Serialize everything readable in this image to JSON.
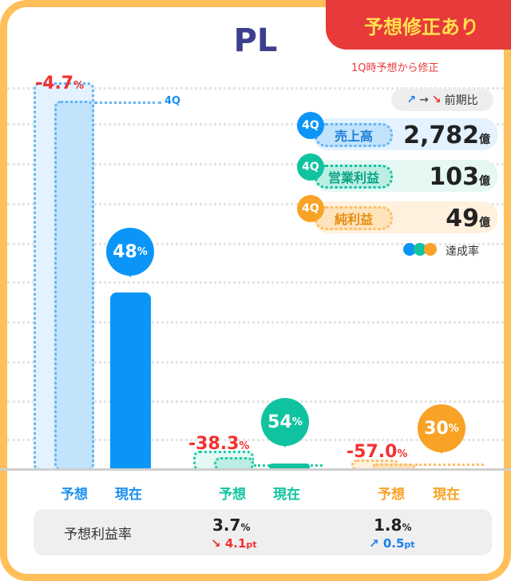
{
  "title": "PL",
  "badge": {
    "label": "予想修正あり",
    "sub": "1Q時予想から修正"
  },
  "legend": {
    "arrows": [
      "↗",
      "→",
      "↘"
    ],
    "compare_label": "前期比",
    "rate_label": "達成率"
  },
  "metrics": [
    {
      "q": "4Q",
      "name": "売上高",
      "value": "2,782",
      "unit": "億",
      "color": "#1a8fef"
    },
    {
      "q": "4Q",
      "name": "営業利益",
      "value": "103",
      "unit": "億",
      "color": "#10c3a0"
    },
    {
      "q": "4Q",
      "name": "純利益",
      "value": "49",
      "unit": "億",
      "color": "#f8a326"
    }
  ],
  "bars": [
    {
      "revision": "-4.7",
      "achievement": "48",
      "forecast_tag": "4Q",
      "labels": [
        "予想",
        "現在"
      ],
      "achievement_pct": 48
    },
    {
      "revision": "-38.3",
      "achievement": "54",
      "labels": [
        "予想",
        "現在"
      ],
      "achievement_pct": 54
    },
    {
      "revision": "-57.0",
      "achievement": "30",
      "labels": [
        "予想",
        "現在"
      ],
      "achievement_pct": 30
    }
  ],
  "pct_unit": "%",
  "margin": {
    "label": "予想利益率",
    "items": [
      {
        "value": "3.7",
        "unit": "%",
        "arrow": "↘",
        "change": "4.1",
        "change_unit": "pt",
        "color": "#f2312f"
      },
      {
        "value": "1.8",
        "unit": "%",
        "arrow": "↗",
        "change": "0.5",
        "change_unit": "pt",
        "color": "#1a7ff0"
      }
    ]
  }
}
